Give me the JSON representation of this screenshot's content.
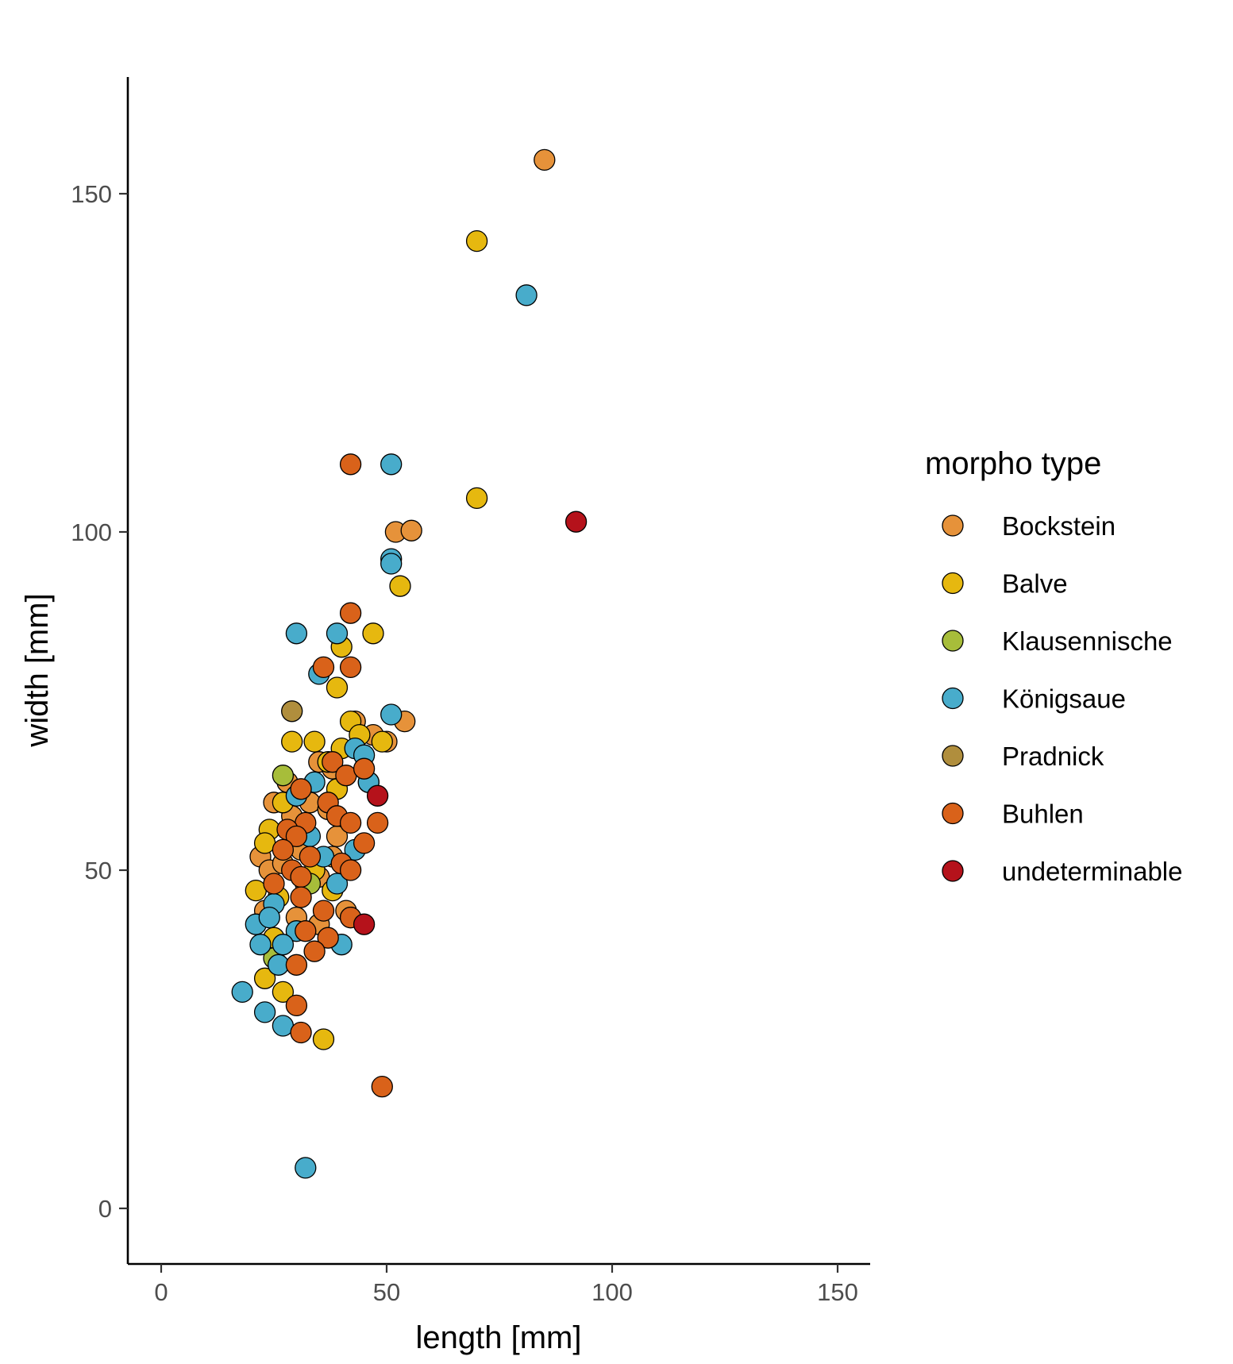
{
  "chart_data": {
    "type": "scatter",
    "xlabel": "length [mm]",
    "ylabel": "width [mm]",
    "xlim": [
      -7,
      158
    ],
    "ylim": [
      -8,
      168
    ],
    "x_ticks": [
      0,
      50,
      100,
      150
    ],
    "y_ticks": [
      0,
      50,
      100,
      150
    ],
    "grid": false,
    "legend": {
      "title": "morpho type",
      "position": "right"
    },
    "series": [
      {
        "name": "Bockstein",
        "color": "#E6923A",
        "points": [
          [
            85,
            155
          ],
          [
            52,
            100
          ],
          [
            55.5,
            100.2
          ],
          [
            54,
            72
          ],
          [
            43,
            72
          ],
          [
            47,
            70
          ],
          [
            50,
            69
          ],
          [
            35,
            66
          ],
          [
            38,
            65
          ],
          [
            28,
            63
          ],
          [
            33,
            60
          ],
          [
            25,
            60
          ],
          [
            29,
            58
          ],
          [
            37,
            59
          ],
          [
            39,
            55
          ],
          [
            22,
            52
          ],
          [
            24,
            50
          ],
          [
            27,
            51
          ],
          [
            31,
            53
          ],
          [
            35,
            49
          ],
          [
            38,
            52
          ],
          [
            23,
            44
          ],
          [
            30,
            43
          ],
          [
            35,
            42
          ],
          [
            41,
            44
          ],
          [
            32,
            48
          ]
        ]
      },
      {
        "name": "Balve",
        "color": "#E6B80F",
        "points": [
          [
            70,
            143
          ],
          [
            70,
            105
          ],
          [
            53,
            92
          ],
          [
            47,
            85
          ],
          [
            40,
            83
          ],
          [
            39,
            77
          ],
          [
            42,
            72
          ],
          [
            44,
            70
          ],
          [
            49,
            69
          ],
          [
            29,
            69
          ],
          [
            34,
            69
          ],
          [
            40,
            68
          ],
          [
            37,
            66
          ],
          [
            39,
            62
          ],
          [
            27,
            60
          ],
          [
            24,
            56
          ],
          [
            23,
            54
          ],
          [
            34,
            50
          ],
          [
            38,
            47
          ],
          [
            21,
            47
          ],
          [
            26,
            46
          ],
          [
            42,
            43
          ],
          [
            25,
            40
          ],
          [
            23,
            34
          ],
          [
            27,
            32
          ],
          [
            36,
            25
          ]
        ]
      },
      {
        "name": "Klausennische",
        "color": "#A7BD3A",
        "points": [
          [
            46,
            63
          ],
          [
            27,
            64
          ],
          [
            33,
            48
          ],
          [
            25,
            37
          ]
        ]
      },
      {
        "name": "Königsaue",
        "color": "#48ACCB",
        "points": [
          [
            81,
            135
          ],
          [
            51,
            110
          ],
          [
            51,
            96
          ],
          [
            51,
            95.3
          ],
          [
            30,
            85
          ],
          [
            39,
            85
          ],
          [
            35,
            79
          ],
          [
            51,
            73
          ],
          [
            43,
            68
          ],
          [
            45,
            67
          ],
          [
            46,
            63
          ],
          [
            34,
            63
          ],
          [
            30,
            61
          ],
          [
            33,
            55
          ],
          [
            36,
            52
          ],
          [
            43,
            53
          ],
          [
            39,
            48
          ],
          [
            25,
            45
          ],
          [
            21,
            42
          ],
          [
            24,
            43
          ],
          [
            30,
            41
          ],
          [
            22,
            39
          ],
          [
            27,
            39
          ],
          [
            40,
            39
          ],
          [
            26,
            36
          ],
          [
            18,
            32
          ],
          [
            23,
            29
          ],
          [
            27,
            27
          ],
          [
            32,
            6
          ]
        ]
      },
      {
        "name": "Pradnick",
        "color": "#B08E3D",
        "points": [
          [
            29,
            73.5
          ]
        ]
      },
      {
        "name": "Buhlen",
        "color": "#D9621A",
        "points": [
          [
            42,
            110
          ],
          [
            42,
            88
          ],
          [
            36,
            80
          ],
          [
            42,
            80
          ],
          [
            38,
            66
          ],
          [
            41,
            64
          ],
          [
            45,
            65
          ],
          [
            31,
            62
          ],
          [
            37,
            60
          ],
          [
            39,
            58
          ],
          [
            42,
            57
          ],
          [
            48,
            57
          ],
          [
            32,
            57
          ],
          [
            28,
            56
          ],
          [
            30,
            55
          ],
          [
            45,
            54
          ],
          [
            27,
            53
          ],
          [
            33,
            52
          ],
          [
            40,
            51
          ],
          [
            29,
            50
          ],
          [
            31,
            49
          ],
          [
            42,
            50
          ],
          [
            25,
            48
          ],
          [
            31,
            46
          ],
          [
            36,
            44
          ],
          [
            42,
            43
          ],
          [
            32,
            41
          ],
          [
            37,
            40
          ],
          [
            34,
            38
          ],
          [
            30,
            36
          ],
          [
            30,
            30
          ],
          [
            31,
            26
          ],
          [
            49,
            18
          ]
        ]
      },
      {
        "name": "undeterminable",
        "color": "#B5121B",
        "points": [
          [
            92,
            101.5
          ],
          [
            48,
            61
          ],
          [
            45,
            42
          ]
        ]
      }
    ]
  }
}
